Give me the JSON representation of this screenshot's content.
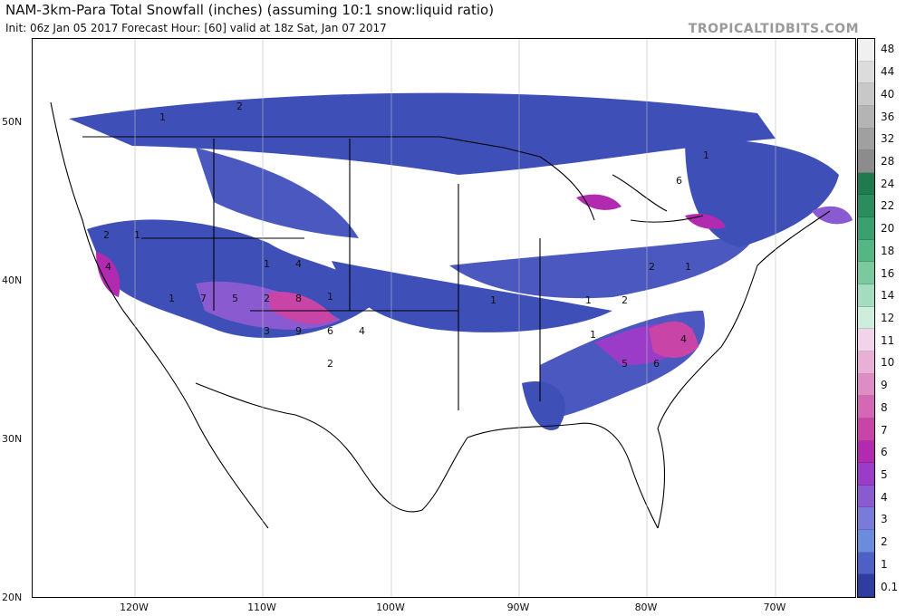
{
  "header": {
    "title": "NAM-3km-Para Total Snowfall (inches) (assuming 10:1 snow:liquid ratio)",
    "subtitle": "Init: 06z Jan 05 2017   Forecast Hour: [60]   valid at 18z Sat, Jan 07 2017",
    "brand": "TROPICALTIDBITS.COM"
  },
  "map": {
    "lat_labels": [
      "50N",
      "40N",
      "30N",
      "20N"
    ],
    "lon_labels": [
      "120W",
      "110W",
      "100W",
      "90W",
      "80W",
      "70W"
    ],
    "contour_labels": [
      "2",
      "1",
      "2",
      "1",
      "1",
      "4",
      "4",
      "1",
      "7",
      "5",
      "2",
      "8",
      "1",
      "3",
      "9",
      "6",
      "2",
      "4",
      "1",
      "1",
      "2",
      "1",
      "2",
      "1",
      "6",
      "5",
      "4",
      "6",
      "1"
    ]
  },
  "colorbar": {
    "labels": [
      "48",
      "44",
      "40",
      "36",
      "32",
      "28",
      "24",
      "22",
      "20",
      "18",
      "16",
      "14",
      "12",
      "11",
      "10",
      "9",
      "8",
      "7",
      "6",
      "5",
      "4",
      "3",
      "2",
      "1",
      "0.1"
    ],
    "colors": [
      "#f0f0f0",
      "#dcdcdc",
      "#c8c8c8",
      "#b4b4b4",
      "#a0a0a0",
      "#8c8c8c",
      "#1f7a4f",
      "#2b8c5e",
      "#3ba06d",
      "#55b584",
      "#7cc9a0",
      "#a4dcbf",
      "#cdeedd",
      "#f2d4ea",
      "#e8b0d6",
      "#de8cc4",
      "#d468b4",
      "#c844a6",
      "#b22ab0",
      "#9a3cc8",
      "#8a5ad0",
      "#7a7ad8",
      "#6b8cdc",
      "#4f5fc8",
      "#2f3da0"
    ]
  }
}
